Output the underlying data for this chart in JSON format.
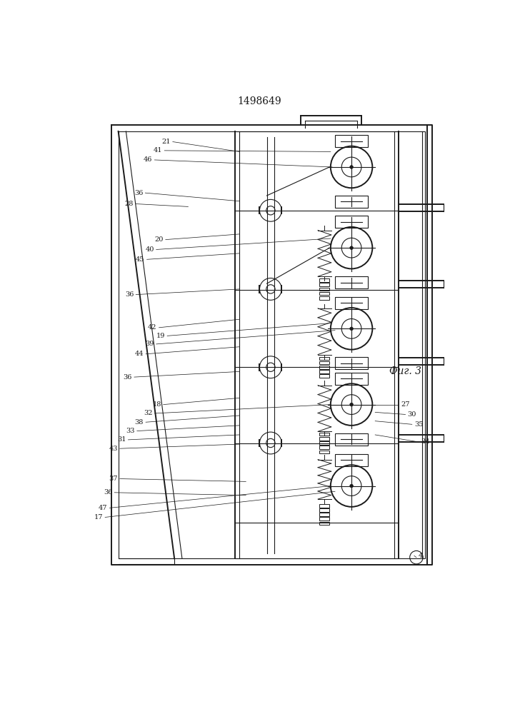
{
  "title": "1498649",
  "fig_label": "Фиг. 3",
  "background": "#ffffff",
  "line_color": "#1a1a1a",
  "figsize": [
    7.07,
    10.0
  ],
  "dpi": 100
}
